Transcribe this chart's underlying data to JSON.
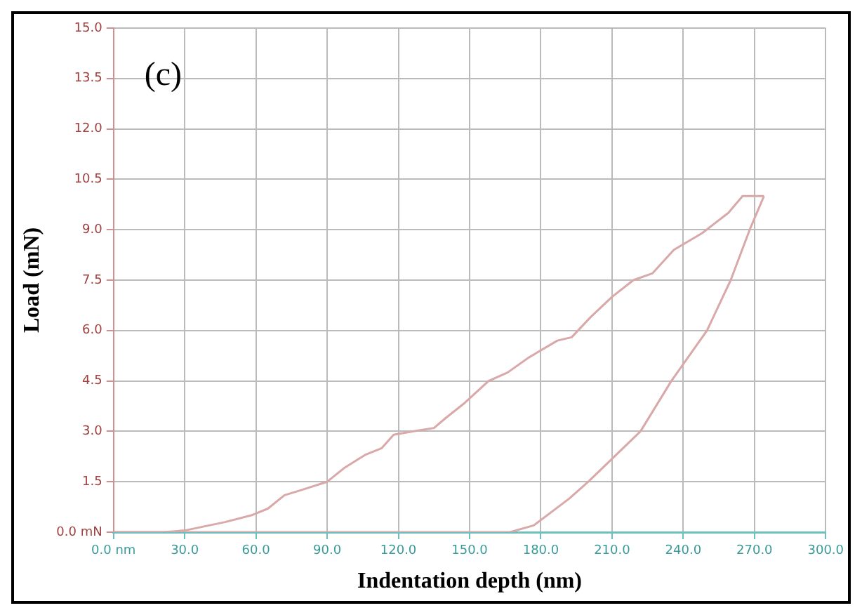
{
  "chart_data": {
    "type": "line",
    "xlabel": "Indentation depth (nm)",
    "ylabel": "Load (mN)",
    "annotations": [
      "(c)"
    ],
    "xlim": [
      0,
      300
    ],
    "ylim": [
      0,
      15
    ],
    "xticks": [
      {
        "value": 0,
        "label": "0.0 nm"
      },
      {
        "value": 30,
        "label": "30.0"
      },
      {
        "value": 60,
        "label": "60.0"
      },
      {
        "value": 90,
        "label": "90.0"
      },
      {
        "value": 120,
        "label": "120.0"
      },
      {
        "value": 150,
        "label": "150.0"
      },
      {
        "value": 180,
        "label": "180.0"
      },
      {
        "value": 210,
        "label": "210.0"
      },
      {
        "value": 240,
        "label": "240.0"
      },
      {
        "value": 270,
        "label": "270.0"
      },
      {
        "value": 300,
        "label": "300.0"
      }
    ],
    "yticks": [
      {
        "value": 0,
        "label": "0.0 mN"
      },
      {
        "value": 1.5,
        "label": "1.5"
      },
      {
        "value": 3,
        "label": "3.0"
      },
      {
        "value": 4.5,
        "label": "4.5"
      },
      {
        "value": 6,
        "label": "6.0"
      },
      {
        "value": 7.5,
        "label": "7.5"
      },
      {
        "value": 9,
        "label": "9.0"
      },
      {
        "value": 10.5,
        "label": "10.5"
      },
      {
        "value": 12,
        "label": "12.0"
      },
      {
        "value": 13.5,
        "label": "13.5"
      },
      {
        "value": 15,
        "label": "15.0"
      }
    ],
    "grid": true,
    "marker": "none",
    "line_style": "solid",
    "series": [
      {
        "color": "#d9a8a8",
        "x": [
          0,
          21,
          30,
          47,
          58,
          65,
          72,
          79,
          90,
          97,
          106,
          113,
          118,
          126,
          135,
          140,
          148,
          158,
          166,
          175,
          187,
          193,
          201,
          210,
          219,
          227,
          236,
          248,
          259,
          265,
          274
        ],
        "values": [
          0,
          0,
          0.05,
          0.3,
          0.5,
          0.7,
          1.1,
          1.25,
          1.5,
          1.9,
          2.3,
          2.5,
          2.9,
          3.0,
          3.1,
          3.4,
          3.85,
          4.5,
          4.75,
          5.2,
          5.7,
          5.8,
          6.4,
          7.0,
          7.5,
          7.7,
          8.4,
          8.9,
          9.5,
          10.0,
          10.0
        ]
      },
      {
        "color": "#d9a8a8",
        "x": [
          0,
          167,
          177,
          192,
          200,
          222,
          235,
          250,
          260,
          268,
          274
        ],
        "values": [
          0,
          0,
          0.2,
          1.0,
          1.5,
          3.0,
          4.5,
          6.0,
          7.5,
          9.0,
          10.0
        ]
      }
    ]
  }
}
